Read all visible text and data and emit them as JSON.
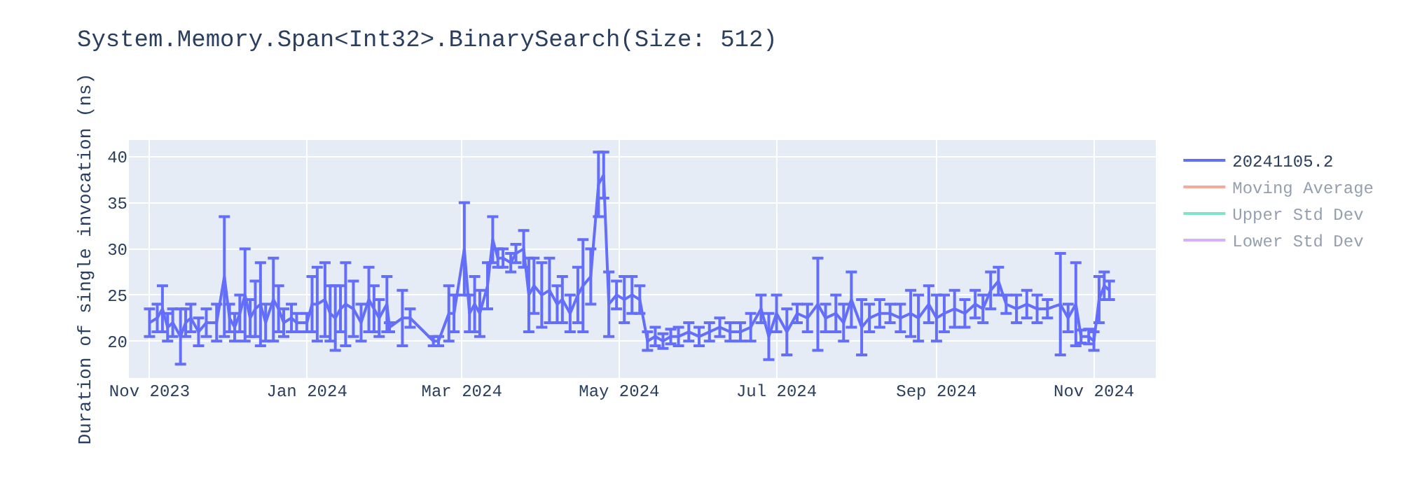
{
  "chart_data": {
    "type": "line",
    "title": "System.Memory.Span<Int32>.BinarySearch(Size: 512)",
    "ylabel": "Duration of single invocation (ns)",
    "x": [
      "2023-11-01",
      "2023-11-04",
      "2023-11-06",
      "2023-11-08",
      "2023-11-10",
      "2023-11-13",
      "2023-11-15",
      "2023-11-17",
      "2023-11-20",
      "2023-11-23",
      "2023-11-27",
      "2023-11-30",
      "2023-12-02",
      "2023-12-04",
      "2023-12-06",
      "2023-12-08",
      "2023-12-10",
      "2023-12-12",
      "2023-12-14",
      "2023-12-16",
      "2023-12-19",
      "2023-12-21",
      "2023-12-23",
      "2023-12-26",
      "2023-12-28",
      "2024-01-01",
      "2024-01-03",
      "2024-01-05",
      "2024-01-08",
      "2024-01-10",
      "2024-01-12",
      "2024-01-14",
      "2024-01-16",
      "2024-01-19",
      "2024-01-22",
      "2024-01-25",
      "2024-01-27",
      "2024-01-29",
      "2024-02-01",
      "2024-02-02",
      "2024-02-07",
      "2024-02-10",
      "2024-02-19",
      "2024-02-21",
      "2024-02-25",
      "2024-02-27",
      "2024-03-02",
      "2024-03-04",
      "2024-03-06",
      "2024-03-08",
      "2024-03-11",
      "2024-03-13",
      "2024-03-15",
      "2024-03-17",
      "2024-03-20",
      "2024-03-22",
      "2024-03-25",
      "2024-03-27",
      "2024-03-29",
      "2024-04-01",
      "2024-04-04",
      "2024-04-07",
      "2024-04-09",
      "2024-04-12",
      "2024-04-15",
      "2024-04-17",
      "2024-04-20",
      "2024-04-23",
      "2024-04-25",
      "2024-04-27",
      "2024-04-30",
      "2024-05-03",
      "2024-05-06",
      "2024-05-09",
      "2024-05-12",
      "2024-05-15",
      "2024-05-18",
      "2024-05-21",
      "2024-05-24",
      "2024-05-28",
      "2024-06-01",
      "2024-06-05",
      "2024-06-09",
      "2024-06-13",
      "2024-06-17",
      "2024-06-21",
      "2024-06-25",
      "2024-06-28",
      "2024-07-01",
      "2024-07-05",
      "2024-07-09",
      "2024-07-13",
      "2024-07-17",
      "2024-07-20",
      "2024-07-24",
      "2024-07-27",
      "2024-07-30",
      "2024-08-03",
      "2024-08-06",
      "2024-08-10",
      "2024-08-14",
      "2024-08-18",
      "2024-08-22",
      "2024-08-25",
      "2024-08-29",
      "2024-09-01",
      "2024-09-04",
      "2024-09-08",
      "2024-09-12",
      "2024-09-16",
      "2024-09-19",
      "2024-09-22",
      "2024-09-25",
      "2024-09-28",
      "2024-10-02",
      "2024-10-06",
      "2024-10-10",
      "2024-10-14",
      "2024-10-19",
      "2024-10-22",
      "2024-10-25",
      "2024-10-27",
      "2024-10-30",
      "2024-11-01",
      "2024-11-03",
      "2024-11-05",
      "2024-11-07"
    ],
    "series": [
      {
        "name": "20241105.2",
        "color": "#636efa",
        "values": [
          22,
          22.5,
          23.5,
          21.5,
          22,
          20.5,
          22,
          22.5,
          21,
          22,
          22,
          27,
          22.5,
          21.5,
          23,
          25,
          22.5,
          23.5,
          24,
          22,
          24.5,
          23.5,
          22,
          22.5,
          22,
          22,
          24,
          24,
          24.5,
          23,
          22.5,
          23.5,
          24,
          23.5,
          22,
          24.5,
          23.5,
          22.5,
          24,
          21.5,
          22.5,
          22.5,
          20,
          20,
          23,
          23,
          30,
          23,
          24,
          23,
          26,
          31,
          29,
          29,
          28.5,
          29.5,
          30,
          25,
          26,
          25,
          25.5,
          24,
          24.5,
          23,
          25,
          26,
          27,
          37,
          38,
          24,
          25,
          24.5,
          25,
          24.5,
          20,
          20.5,
          20,
          20.5,
          20.5,
          21,
          20.5,
          21,
          21.5,
          21,
          21,
          21.5,
          23.5,
          20.5,
          23,
          21,
          23,
          22.5,
          24,
          22.5,
          23,
          22,
          24.5,
          21.5,
          22.5,
          23,
          23,
          22.5,
          23,
          22.5,
          24,
          22.5,
          23,
          23.5,
          23,
          24,
          23.5,
          25.5,
          26.5,
          24,
          23.5,
          24,
          23.5,
          23.5,
          24,
          22.5,
          24,
          20.5,
          20.5,
          20,
          24.5,
          26,
          25.5
        ],
        "errors": [
          1.5,
          1.5,
          2.5,
          1.5,
          1.5,
          3,
          1.5,
          1.5,
          1.5,
          1.5,
          2,
          6.5,
          1.5,
          1.5,
          2,
          5,
          2,
          3,
          4.5,
          2,
          4.5,
          2.5,
          1.5,
          1.5,
          1,
          1,
          3,
          4,
          4,
          3,
          3.5,
          2.5,
          4.5,
          3,
          2,
          3.5,
          2.5,
          2,
          3,
          0.5,
          3,
          1,
          0.5,
          0.5,
          3,
          2,
          5,
          2,
          3,
          2.5,
          2.5,
          2.5,
          1,
          1,
          1,
          1,
          2,
          4,
          3,
          3.5,
          3.5,
          2,
          2.5,
          2,
          3,
          5,
          3,
          3.5,
          2.5,
          3.5,
          1.5,
          2.5,
          2,
          1.5,
          1,
          1,
          0.8,
          0.8,
          1,
          1,
          1,
          1,
          1,
          1,
          1,
          1.5,
          1.5,
          2.5,
          2,
          2.5,
          1,
          1.5,
          5,
          1.5,
          2,
          2,
          3,
          3,
          1.5,
          1.5,
          1,
          1.5,
          2.5,
          2.5,
          2,
          2.5,
          2,
          2,
          1.5,
          1.5,
          1.5,
          2,
          1.5,
          1,
          1.5,
          1.5,
          1.5,
          1,
          5.5,
          1.5,
          4.5,
          0.7,
          0.8,
          1,
          2.5,
          1.5,
          1
        ]
      },
      {
        "name": "Moving Average",
        "color": "#ef553b",
        "values": [
          null,
          null,
          null,
          null,
          null,
          null,
          null,
          null,
          null,
          null,
          null,
          null,
          null,
          null,
          null,
          null,
          null,
          null,
          null,
          null,
          null,
          null,
          null,
          null,
          null,
          null,
          null,
          null,
          null,
          null,
          null,
          null,
          null,
          null,
          null,
          null,
          null,
          null,
          null,
          null,
          null,
          null,
          null,
          null,
          null,
          null,
          null,
          null,
          null,
          null,
          null,
          null,
          null,
          null,
          null,
          null,
          null,
          null,
          null,
          null,
          null,
          null,
          null,
          null,
          null,
          null,
          null,
          null,
          null,
          null,
          null,
          null,
          null,
          null,
          null,
          null,
          null,
          null,
          null,
          null,
          null,
          null,
          null,
          null,
          null,
          null,
          null,
          null,
          null,
          null,
          null,
          null,
          null,
          null,
          null,
          null,
          null,
          null,
          null,
          null,
          null,
          null,
          null,
          null,
          null,
          null,
          null,
          null,
          null,
          null,
          null,
          null,
          null,
          null,
          null,
          null,
          null,
          null,
          null,
          null,
          null,
          null,
          null,
          null,
          null,
          null,
          null
        ]
      },
      {
        "name": "Upper Std Dev",
        "color": "#00cc96",
        "values": [
          null,
          null,
          null,
          null,
          null,
          null,
          null,
          null,
          null,
          null,
          null,
          null,
          null,
          null,
          null,
          null,
          null,
          null,
          null,
          null,
          null,
          null,
          null,
          null,
          null,
          null,
          null,
          null,
          null,
          null,
          null,
          null,
          null,
          null,
          null,
          null,
          null,
          null,
          null,
          null,
          null,
          null,
          null,
          null,
          null,
          null,
          null,
          null,
          null,
          null,
          null,
          null,
          null,
          null,
          null,
          null,
          null,
          null,
          null,
          null,
          null,
          null,
          null,
          null,
          null,
          null,
          null,
          null,
          null,
          null,
          null,
          null,
          null,
          null,
          null,
          null,
          null,
          null,
          null,
          null,
          null,
          null,
          null,
          null,
          null,
          null,
          null,
          null,
          null,
          null,
          null,
          null,
          null,
          null,
          null,
          null,
          null,
          null,
          null,
          null,
          null,
          null,
          null,
          null,
          null,
          null,
          null,
          null,
          null,
          null,
          null,
          null,
          null,
          null,
          null,
          null,
          null,
          null,
          null,
          null,
          null,
          null,
          null,
          null,
          null,
          null,
          null
        ]
      },
      {
        "name": "Lower Std Dev",
        "color": "#ab63fa",
        "values": [
          null,
          null,
          null,
          null,
          null,
          null,
          null,
          null,
          null,
          null,
          null,
          null,
          null,
          null,
          null,
          null,
          null,
          null,
          null,
          null,
          null,
          null,
          null,
          null,
          null,
          null,
          null,
          null,
          null,
          null,
          null,
          null,
          null,
          null,
          null,
          null,
          null,
          null,
          null,
          null,
          null,
          null,
          null,
          null,
          null,
          null,
          null,
          null,
          null,
          null,
          null,
          null,
          null,
          null,
          null,
          null,
          null,
          null,
          null,
          null,
          null,
          null,
          null,
          null,
          null,
          null,
          null,
          null,
          null,
          null,
          null,
          null,
          null,
          null,
          null,
          null,
          null,
          null,
          null,
          null,
          null,
          null,
          null,
          null,
          null,
          null,
          null,
          null,
          null,
          null,
          null,
          null,
          null,
          null,
          null,
          null,
          null,
          null,
          null,
          null,
          null,
          null,
          null,
          null,
          null,
          null,
          null,
          null,
          null,
          null,
          null,
          null,
          null,
          null,
          null,
          null,
          null,
          null,
          null,
          null,
          null,
          null,
          null,
          null,
          null,
          null,
          null
        ]
      }
    ],
    "xlim": [
      "2023-10-24",
      "2024-11-25"
    ],
    "xticks": [
      {
        "value": "2023-11-01",
        "label": "Nov 2023"
      },
      {
        "value": "2024-01-01",
        "label": "Jan 2024"
      },
      {
        "value": "2024-03-01",
        "label": "Mar 2024"
      },
      {
        "value": "2024-05-01",
        "label": "May 2024"
      },
      {
        "value": "2024-07-01",
        "label": "Jul 2024"
      },
      {
        "value": "2024-09-01",
        "label": "Sep 2024"
      },
      {
        "value": "2024-11-01",
        "label": "Nov 2024"
      }
    ],
    "ylim": [
      16,
      41.8
    ],
    "yticks": [
      20,
      25,
      30,
      35,
      40
    ],
    "grid": true,
    "legend": "top right",
    "marker": "none",
    "line_style": "solid"
  }
}
